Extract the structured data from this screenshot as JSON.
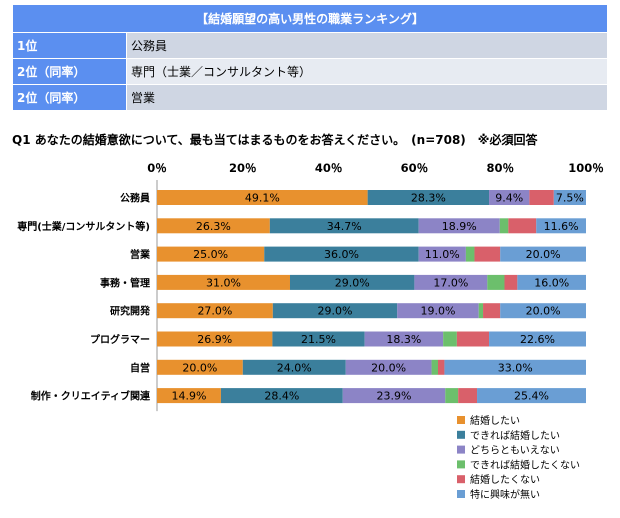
{
  "ranking": {
    "title": "【結婚願望の高い男性の職業ランキング】",
    "rows": [
      {
        "rank": "1位",
        "job": "公務員"
      },
      {
        "rank": "2位（同率）",
        "job": "専門（士業／コンサルタント等）"
      },
      {
        "rank": "2位（同率）",
        "job": "営業"
      }
    ]
  },
  "question": "Q1 あなたの結婚意欲について、最も当てはまるものをお答えください。　(n=708)　※必須回答",
  "chart_data": {
    "type": "bar",
    "orientation": "horizontal",
    "stacked": true,
    "xlim": [
      0,
      100
    ],
    "x_ticks": [
      "0％",
      "20％",
      "40％",
      "60％",
      "80％",
      "100％"
    ],
    "categories": [
      "公務員",
      "専門(士業/コンサルタント等)",
      "営業",
      "事務・管理",
      "研究開発",
      "プログラマー",
      "自営",
      "制作・クリエイティブ関連"
    ],
    "series": [
      {
        "name": "結婚したい",
        "color": "#e8912e",
        "values": [
          49.1,
          26.3,
          25.0,
          31.0,
          27.0,
          26.9,
          20.0,
          14.9
        ],
        "labels": [
          "49.1%",
          "26.3%",
          "25.0%",
          "31.0%",
          "27.0%",
          "26.9%",
          "20.0%",
          "14.9%"
        ]
      },
      {
        "name": "できれば結婚したい",
        "color": "#3b7f9c",
        "values": [
          28.3,
          34.7,
          36.0,
          29.0,
          29.0,
          21.5,
          24.0,
          28.4
        ],
        "labels": [
          "28.3%",
          "34.7%",
          "36.0%",
          "29.0%",
          "29.0%",
          "21.5%",
          "24.0%",
          "28.4%"
        ]
      },
      {
        "name": "どちらともいえない",
        "color": "#8c84c6",
        "values": [
          9.4,
          18.9,
          11.0,
          17.0,
          19.0,
          18.3,
          20.0,
          23.9
        ],
        "labels": [
          "9.4%",
          "18.9%",
          "11.0%",
          "17.0%",
          "19.0%",
          "18.3%",
          "20.0%",
          "23.9%"
        ]
      },
      {
        "name": "できれば結婚したくない",
        "color": "#6cbf6c",
        "values": [
          0.0,
          2.0,
          2.0,
          4.0,
          1.0,
          3.2,
          1.5,
          3.0
        ],
        "labels": [
          "",
          "",
          "",
          "",
          "",
          "",
          "",
          ""
        ]
      },
      {
        "name": "結婚したくない",
        "color": "#d9606a",
        "values": [
          5.7,
          6.5,
          6.0,
          3.0,
          4.0,
          7.5,
          1.5,
          4.4
        ],
        "labels": [
          "",
          "",
          "",
          "",
          "",
          "",
          "",
          ""
        ]
      },
      {
        "name": "特に興味が無い",
        "color": "#6a9ed4",
        "values": [
          7.5,
          11.6,
          20.0,
          16.0,
          20.0,
          22.6,
          33.0,
          25.4
        ],
        "labels": [
          "7.5%",
          "11.6%",
          "20.0%",
          "16.0%",
          "20.0%",
          "22.6%",
          "33.0%",
          "25.4%"
        ]
      }
    ]
  }
}
